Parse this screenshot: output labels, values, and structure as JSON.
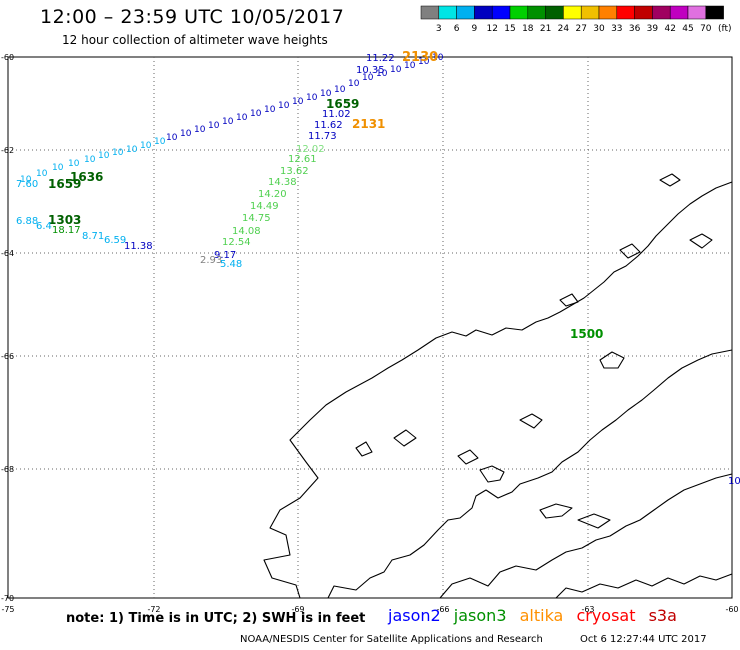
{
  "header": {
    "title": "12:00 – 23:59 UTC 10/05/2017",
    "subtitle": "12 hour collection of altimeter wave heights"
  },
  "colorbar": {
    "unit": "(ft)",
    "levels": [
      "3",
      "6",
      "9",
      "12",
      "15",
      "18",
      "21",
      "24",
      "27",
      "30",
      "33",
      "36",
      "39",
      "42",
      "45",
      "70"
    ],
    "colors": [
      "#808080",
      "#00e5e5",
      "#00b0f0",
      "#0000c0",
      "#0000ff",
      "#00d000",
      "#009000",
      "#006000",
      "#ffff00",
      "#f0c000",
      "#ff8000",
      "#ff0000",
      "#c00000",
      "#a00060",
      "#c000c0",
      "#e070e0",
      "#000000"
    ]
  },
  "map": {
    "lat_labels": [
      "-60",
      "-62",
      "-64",
      "-66",
      "-68",
      "-70"
    ],
    "lon_labels": [
      "-75",
      "-72",
      "-69",
      "-66",
      "-63",
      "-60"
    ],
    "readings": [
      {
        "t": "11.22",
        "c": "#0000c0"
      },
      {
        "t": "2130",
        "c": "#f09000"
      },
      {
        "t": "10.35",
        "c": "#0000c0"
      },
      {
        "t": "11.02",
        "c": "#0000c0"
      },
      {
        "t": "1659",
        "c": "#006000"
      },
      {
        "t": "11.62",
        "c": "#0000c0"
      },
      {
        "t": "2131",
        "c": "#f09000"
      },
      {
        "t": "11.73",
        "c": "#0000c0"
      },
      {
        "t": "12.02",
        "c": "#80e080"
      },
      {
        "t": "12.61",
        "c": "#50d050"
      },
      {
        "t": "13.62",
        "c": "#50d050"
      },
      {
        "t": "14.38",
        "c": "#50d050"
      },
      {
        "t": "14.20",
        "c": "#50d050"
      },
      {
        "t": "14.49",
        "c": "#50d050"
      },
      {
        "t": "14.75",
        "c": "#50d050"
      },
      {
        "t": "14.08",
        "c": "#50d050"
      },
      {
        "t": "12.54",
        "c": "#50d050"
      },
      {
        "t": "9.17",
        "c": "#0000c0"
      },
      {
        "t": "2.93",
        "c": "#808080"
      },
      {
        "t": "5.48",
        "c": "#00b0f0"
      },
      {
        "t": "7.60",
        "c": "#00b0f0"
      },
      {
        "t": "1659",
        "c": "#006000"
      },
      {
        "t": "1636",
        "c": "#006000"
      },
      {
        "t": "6.88",
        "c": "#00b0f0"
      },
      {
        "t": "1303",
        "c": "#006000"
      },
      {
        "t": "6.4",
        "c": "#00b0f0"
      },
      {
        "t": "18.17",
        "c": "#009000"
      },
      {
        "t": "8.71",
        "c": "#00b0f0"
      },
      {
        "t": "6.59",
        "c": "#00b0f0"
      },
      {
        "t": "11.38",
        "c": "#0000c0"
      },
      {
        "t": "1500",
        "c": "#009000"
      },
      {
        "t": "10",
        "c": "#0000c0"
      }
    ]
  },
  "footer": {
    "note": "note:  1) Time is in UTC;  2) SWH is in feet",
    "satellites": [
      {
        "name": "jason2",
        "color": "#0000ff"
      },
      {
        "name": "jason3",
        "color": "#009000"
      },
      {
        "name": "altika",
        "color": "#ff9000"
      },
      {
        "name": "cryosat",
        "color": "#ff0000"
      },
      {
        "name": "s3a",
        "color": "#c00000"
      }
    ],
    "credit": "NOAA/NESDIS Center for Satellite Applications and Research",
    "timestamp": "Oct  6 12:27:44 UTC 2017"
  }
}
